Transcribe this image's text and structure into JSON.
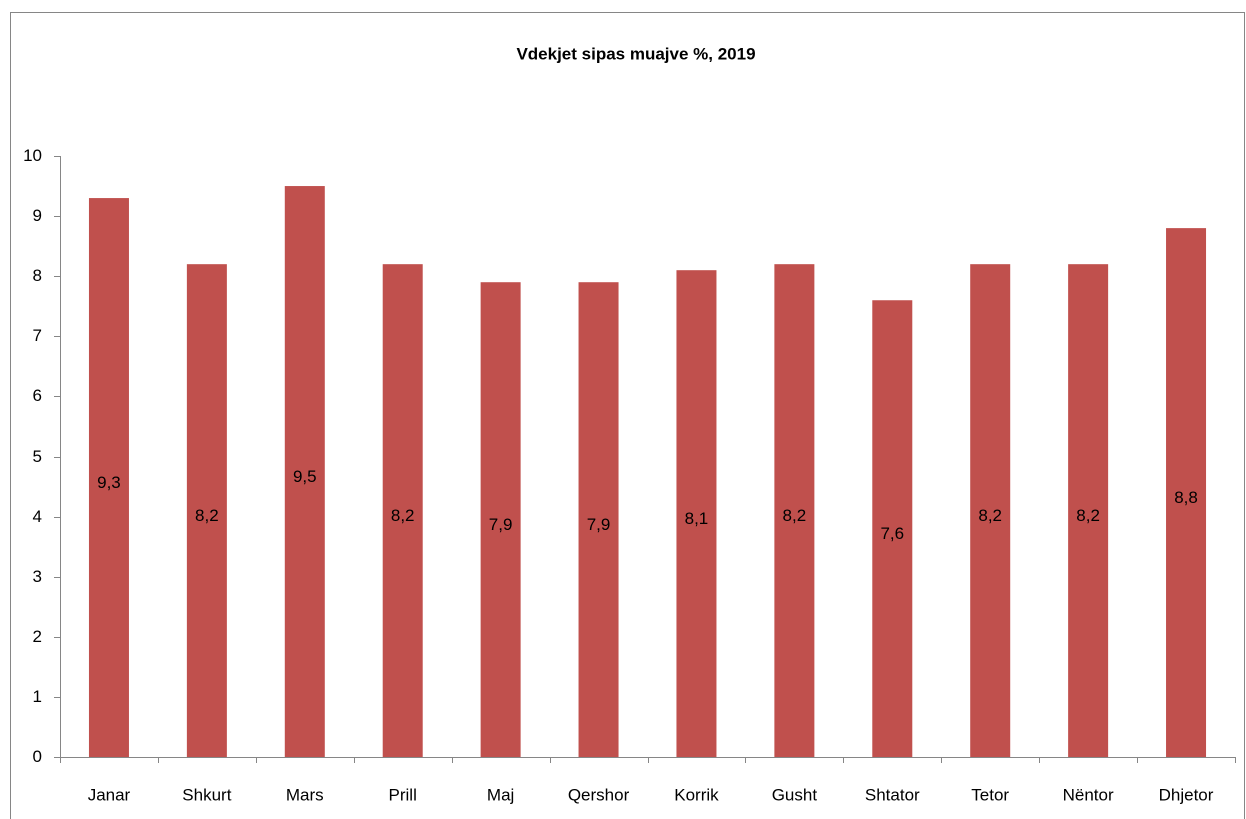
{
  "chart_data": {
    "type": "bar",
    "title": "Vdekjet sipas muajve %, 2019",
    "categories": [
      "Janar",
      "Shkurt",
      "Mars",
      "Prill",
      "Maj",
      "Qershor",
      "Korrik",
      "Gusht",
      "Shtator",
      "Tetor",
      "Nëntor",
      "Dhjetor"
    ],
    "values": [
      9.3,
      8.2,
      9.5,
      8.2,
      7.9,
      7.9,
      8.1,
      8.2,
      7.6,
      8.2,
      8.2,
      8.8
    ],
    "value_labels": [
      "9,3",
      "8,2",
      "9,5",
      "8,2",
      "7,9",
      "7,9",
      "8,1",
      "8,2",
      "7,6",
      "8,2",
      "8,2",
      "8,8"
    ],
    "color": "#c0504d",
    "ylim": [
      0,
      10
    ],
    "yticks": [
      0,
      1,
      2,
      3,
      4,
      5,
      6,
      7,
      8,
      9,
      10
    ],
    "grid": false
  }
}
